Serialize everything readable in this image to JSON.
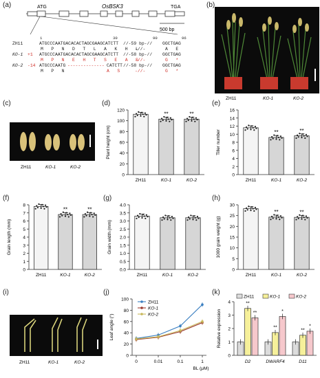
{
  "panels": {
    "a": "(a)",
    "b": "(b)",
    "c": "(c)",
    "d": "(d)",
    "e": "(e)",
    "f": "(f)",
    "g": "(g)",
    "h": "(h)",
    "i": "(i)",
    "j": "(j)",
    "k": "(k)"
  },
  "gene": {
    "name": "OsBSK3",
    "start": "ATG",
    "stop": "TGA",
    "scale": "500 bp",
    "pos_1": "1",
    "pos_30": "30",
    "pos_90": "90",
    "pos_96": "96"
  },
  "sequences": [
    {
      "label": "ZH11",
      "mut": "",
      "seq": "ATGCCCAATGACACACTAGCGAAGCATCTT",
      "gap": "//-59 bp-//",
      "tail": "GGCTGAG",
      "aa": "M   P   N   D   T   L   A   K   H   L",
      "aa_tail": "-//-",
      "aa_end": "A   E"
    },
    {
      "label": "KO-1",
      "mut": "+1",
      "seq": "ATGCCCAATGACACACTAGCGAAGCATCTT",
      "gap": "//-58 bp-//",
      "tail": "GGCTGAG",
      "aa": "M   P   N   E   H   T   S   E   A   S",
      "aa_tail": "-//-",
      "aa_end": "G   *"
    },
    {
      "label": "KO-2",
      "mut": "-14",
      "seq": "ATGCCCAATG",
      "dashes": "--------------",
      "seq2": "CATCTT",
      "gap": "//-58 bp-//",
      "tail": "GGCTGAG",
      "aa": "M   P   N",
      "aa_red": "A   S",
      "aa_tail": "-//-",
      "aa_end": "G   *"
    }
  ],
  "groups": [
    "ZH11",
    "KO-1",
    "KO-2"
  ],
  "bars": {
    "plant_height": {
      "ylabel": "Plant height (cm)",
      "ylim": [
        0,
        120
      ],
      "ticks": [
        "0",
        "20",
        "40",
        "60",
        "80",
        "100",
        "120"
      ],
      "values": [
        112,
        103,
        103
      ],
      "sig": [
        "",
        "**",
        "**"
      ]
    },
    "tiller": {
      "ylabel": "Tiller number",
      "ylim": [
        0,
        16
      ],
      "ticks": [
        "0",
        "2",
        "4",
        "6",
        "8",
        "10",
        "12",
        "14",
        "16"
      ],
      "values": [
        11.6,
        9.2,
        9.6
      ],
      "sig": [
        "",
        "**",
        "**"
      ]
    },
    "grain_length": {
      "ylabel": "Grain length (mm)",
      "ylim": [
        0,
        8
      ],
      "ticks": [
        "0",
        "1",
        "2",
        "3",
        "4",
        "5",
        "6",
        "7",
        "8"
      ],
      "values": [
        7.8,
        6.8,
        6.8
      ],
      "sig": [
        "",
        "**",
        "**"
      ]
    },
    "grain_width": {
      "ylabel": "Grain width (mm)",
      "ylim": [
        0,
        4
      ],
      "ticks": [
        "0.0",
        "0.5",
        "1.0",
        "1.5",
        "2.0",
        "2.5",
        "3.0",
        "3.5",
        "4.0"
      ],
      "values": [
        3.3,
        3.2,
        3.2
      ],
      "sig": [
        "",
        "",
        ""
      ]
    },
    "grain_weight": {
      "ylabel": "1000 grain weight (g)",
      "ylim": [
        0,
        30
      ],
      "ticks": [
        "0",
        "5",
        "10",
        "15",
        "20",
        "25",
        "30"
      ],
      "values": [
        28.2,
        24.3,
        24.2
      ],
      "sig": [
        "",
        "**",
        "**"
      ]
    }
  },
  "chart_data": [
    {
      "type": "bar",
      "panel": "d",
      "categories": [
        "ZH11",
        "KO-1",
        "KO-2"
      ],
      "values": [
        112,
        103,
        103
      ],
      "ylabel": "Plant height (cm)",
      "ylim": [
        0,
        120
      ]
    },
    {
      "type": "bar",
      "panel": "e",
      "categories": [
        "ZH11",
        "KO-1",
        "KO-2"
      ],
      "values": [
        11.6,
        9.2,
        9.6
      ],
      "ylabel": "Tiller number",
      "ylim": [
        0,
        16
      ]
    },
    {
      "type": "bar",
      "panel": "f",
      "categories": [
        "ZH11",
        "KO-1",
        "KO-2"
      ],
      "values": [
        7.8,
        6.8,
        6.8
      ],
      "ylabel": "Grain length (mm)",
      "ylim": [
        0,
        8
      ]
    },
    {
      "type": "bar",
      "panel": "g",
      "categories": [
        "ZH11",
        "KO-1",
        "KO-2"
      ],
      "values": [
        3.3,
        3.2,
        3.2
      ],
      "ylabel": "Grain width (mm)",
      "ylim": [
        0,
        4
      ]
    },
    {
      "type": "bar",
      "panel": "h",
      "categories": [
        "ZH11",
        "KO-1",
        "KO-2"
      ],
      "values": [
        28.2,
        24.3,
        24.2
      ],
      "ylabel": "1000 grain weight (g)",
      "ylim": [
        0,
        30
      ]
    },
    {
      "type": "line",
      "panel": "j",
      "x": [
        "0",
        "0.01",
        "0.1",
        "1"
      ],
      "xlabel": "BL (μM)",
      "ylabel": "Leaf angle (°)",
      "ylim": [
        0,
        100
      ],
      "series": [
        {
          "name": "ZH11",
          "values": [
            30,
            36,
            52,
            90
          ]
        },
        {
          "name": "KO-1",
          "values": [
            28,
            32,
            42,
            58
          ]
        },
        {
          "name": "KO-2",
          "values": [
            29,
            33,
            44,
            60
          ]
        }
      ]
    },
    {
      "type": "bar",
      "panel": "k",
      "categories": [
        "D2",
        "DWARF4",
        "D11"
      ],
      "ylabel": "Relative expression",
      "ylim": [
        0,
        4
      ],
      "series": [
        {
          "name": "ZH11",
          "values": [
            1,
            1,
            1
          ]
        },
        {
          "name": "KO-1",
          "values": [
            3.5,
            1.7,
            1.5
          ]
        },
        {
          "name": "KO-2",
          "values": [
            2.8,
            2.9,
            1.8
          ]
        }
      ]
    }
  ],
  "line_chart": {
    "xlabel": "BL (μM)",
    "ylabel": "Leaf angle (°)",
    "yticks": [
      "0",
      "20",
      "40",
      "60",
      "80",
      "100"
    ],
    "xticks": [
      "0",
      "0.01",
      "0.1",
      "1"
    ],
    "legend": [
      "ZH11",
      "KO-1",
      "KO-2"
    ],
    "colors": [
      "#3a7fc1",
      "#9b3a2e",
      "#c8b85a"
    ]
  },
  "expr_chart": {
    "ylabel": "Relative expression",
    "yticks": [
      "0",
      "1",
      "2",
      "3",
      "4"
    ],
    "genes": [
      "D2",
      "DWARF4",
      "D11"
    ],
    "legend": [
      "ZH11",
      "KO-1",
      "KO-2"
    ],
    "colors": [
      "#dcdcdc",
      "#f6f09a",
      "#f6c8cc"
    ],
    "sig": [
      [
        "",
        "**",
        "**"
      ],
      [
        "",
        "**",
        "*"
      ],
      [
        "",
        "**",
        "*"
      ]
    ]
  }
}
